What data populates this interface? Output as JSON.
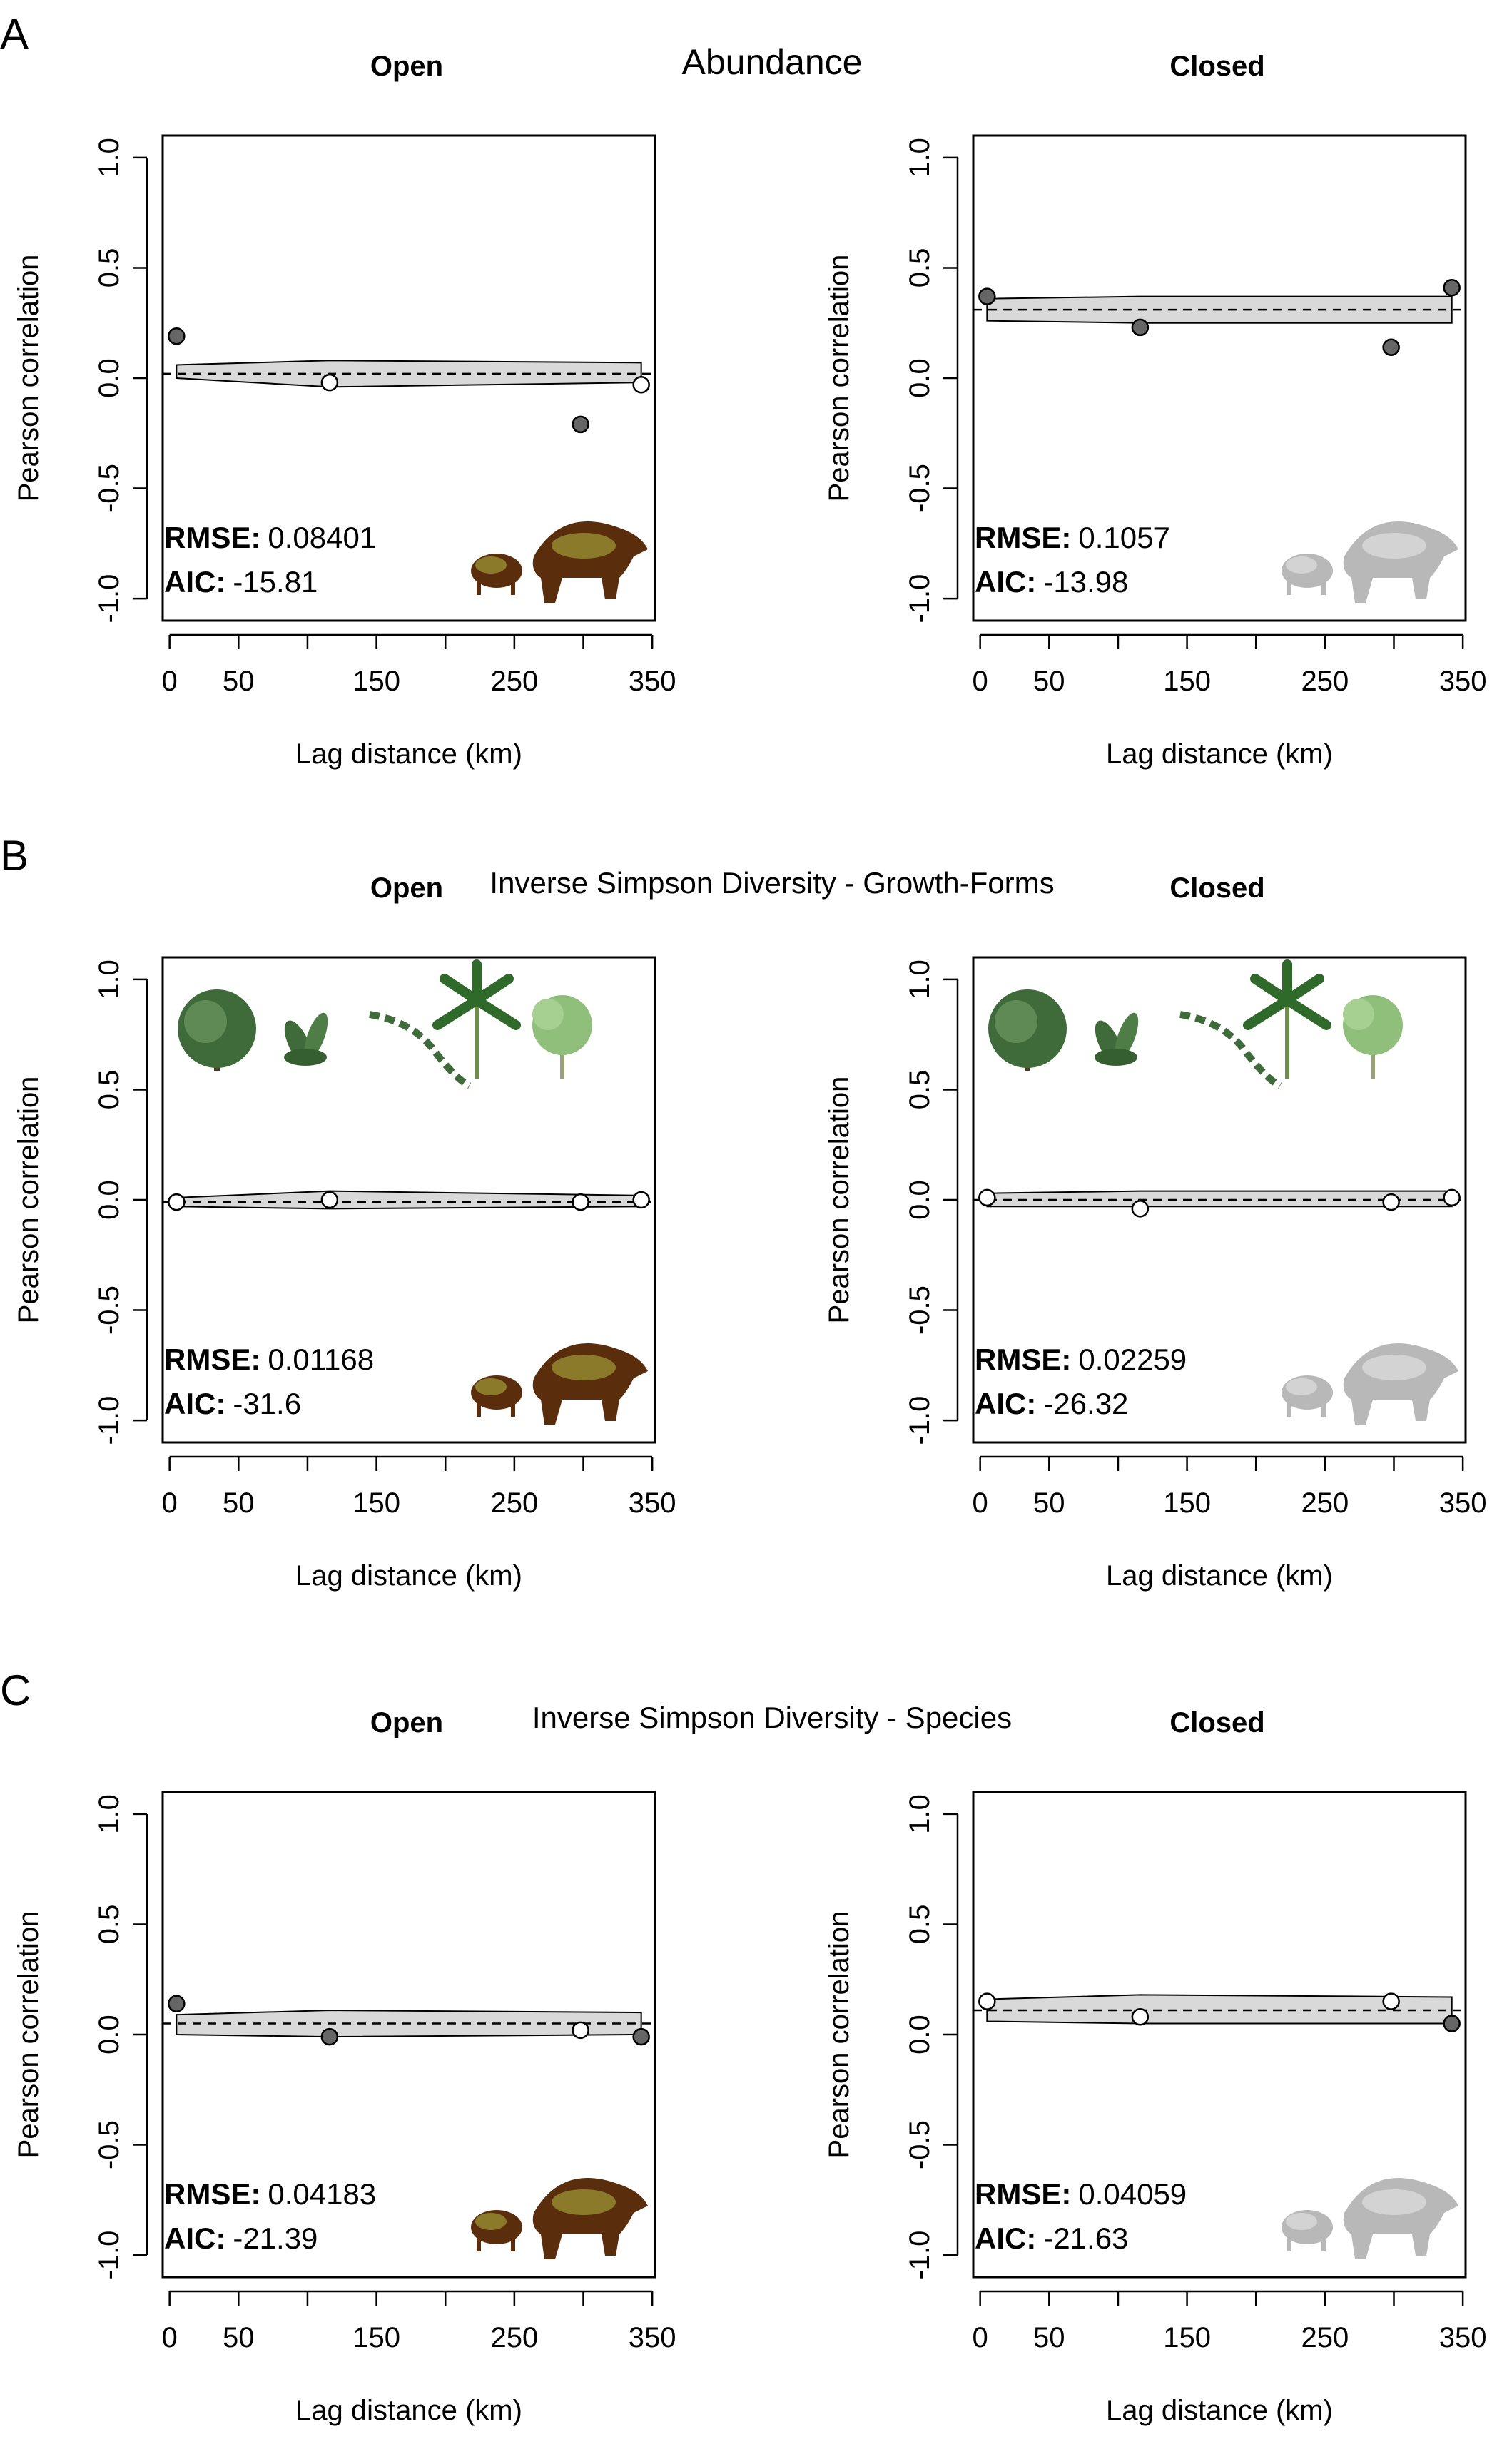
{
  "sections": [
    {
      "label": "A",
      "title": "Abundance",
      "title_style": "large",
      "panels": [
        {
          "name": "Open",
          "rmse_label": "RMSE:",
          "rmse": "0.08401",
          "aic_label": "AIC:",
          "aic": "-15.81",
          "mean_line": 0.02,
          "envelope_upper": [
            0.06,
            0.08,
            0.07
          ],
          "envelope_lower": [
            0.0,
            -0.04,
            -0.02
          ],
          "points": [
            {
              "x": 5,
              "y": 0.19,
              "fill": "dark"
            },
            {
              "x": 116,
              "y": -0.02,
              "fill": "white"
            },
            {
              "x": 298,
              "y": -0.21,
              "fill": "dark"
            },
            {
              "x": 342,
              "y": -0.03,
              "fill": "white"
            }
          ],
          "icon_style": "color",
          "plants": false
        },
        {
          "name": "Closed",
          "rmse_label": "RMSE:",
          "rmse": "0.1057",
          "aic_label": "AIC:",
          "aic": "-13.98",
          "mean_line": 0.31,
          "envelope_upper": [
            0.36,
            0.37,
            0.37
          ],
          "envelope_lower": [
            0.26,
            0.25,
            0.25
          ],
          "points": [
            {
              "x": 5,
              "y": 0.37,
              "fill": "dark"
            },
            {
              "x": 116,
              "y": 0.23,
              "fill": "dark"
            },
            {
              "x": 298,
              "y": 0.14,
              "fill": "dark"
            },
            {
              "x": 342,
              "y": 0.41,
              "fill": "dark"
            }
          ],
          "icon_style": "gray",
          "plants": false
        }
      ]
    },
    {
      "label": "B",
      "title": "Inverse Simpson Diversity - Growth-Forms",
      "title_style": "small",
      "panels": [
        {
          "name": "Open",
          "rmse_label": "RMSE:",
          "rmse": "0.01168",
          "aic_label": "AIC:",
          "aic": "-31.6",
          "mean_line": -0.01,
          "envelope_upper": [
            0.01,
            0.04,
            0.02
          ],
          "envelope_lower": [
            -0.03,
            -0.04,
            -0.03
          ],
          "points": [
            {
              "x": 5,
              "y": -0.01,
              "fill": "white"
            },
            {
              "x": 116,
              "y": 0.0,
              "fill": "white"
            },
            {
              "x": 298,
              "y": -0.01,
              "fill": "white"
            },
            {
              "x": 342,
              "y": 0.0,
              "fill": "white"
            }
          ],
          "icon_style": "color",
          "plants": true
        },
        {
          "name": "Closed",
          "rmse_label": "RMSE:",
          "rmse": "0.02259",
          "aic_label": "AIC:",
          "aic": "-26.32",
          "mean_line": 0.0,
          "envelope_upper": [
            0.03,
            0.04,
            0.04
          ],
          "envelope_lower": [
            -0.03,
            -0.03,
            -0.03
          ],
          "points": [
            {
              "x": 5,
              "y": 0.01,
              "fill": "white"
            },
            {
              "x": 116,
              "y": -0.04,
              "fill": "white"
            },
            {
              "x": 298,
              "y": -0.01,
              "fill": "white"
            },
            {
              "x": 342,
              "y": 0.01,
              "fill": "white"
            }
          ],
          "icon_style": "gray",
          "plants": true
        }
      ]
    },
    {
      "label": "C",
      "title": "Inverse Simpson Diversity - Species",
      "title_style": "small",
      "panels": [
        {
          "name": "Open",
          "rmse_label": "RMSE:",
          "rmse": "0.04183",
          "aic_label": "AIC:",
          "aic": "-21.39",
          "mean_line": 0.05,
          "envelope_upper": [
            0.09,
            0.11,
            0.1
          ],
          "envelope_lower": [
            0.0,
            -0.01,
            0.0
          ],
          "points": [
            {
              "x": 5,
              "y": 0.14,
              "fill": "dark"
            },
            {
              "x": 116,
              "y": -0.01,
              "fill": "dark"
            },
            {
              "x": 298,
              "y": 0.02,
              "fill": "white"
            },
            {
              "x": 342,
              "y": -0.01,
              "fill": "dark"
            }
          ],
          "icon_style": "color",
          "plants": false
        },
        {
          "name": "Closed",
          "rmse_label": "RMSE:",
          "rmse": "0.04059",
          "aic_label": "AIC:",
          "aic": "-21.63",
          "mean_line": 0.11,
          "envelope_upper": [
            0.16,
            0.18,
            0.17
          ],
          "envelope_lower": [
            0.06,
            0.05,
            0.05
          ],
          "points": [
            {
              "x": 5,
              "y": 0.15,
              "fill": "white"
            },
            {
              "x": 116,
              "y": 0.08,
              "fill": "white"
            },
            {
              "x": 298,
              "y": 0.15,
              "fill": "white"
            },
            {
              "x": 342,
              "y": 0.05,
              "fill": "dark"
            }
          ],
          "icon_style": "gray",
          "plants": false
        }
      ]
    }
  ],
  "axes": {
    "xlabel": "Lag distance (km)",
    "ylabel": "Pearson correlation",
    "xlim": [
      -5,
      352
    ],
    "ylim": [
      -1.1,
      1.1
    ],
    "x_ticks": [
      0,
      50,
      150,
      250,
      350
    ],
    "x_ticks_minor": [
      100,
      200,
      300
    ],
    "y_ticks": [
      -1.0,
      -0.5,
      0.0,
      0.5,
      1.0
    ],
    "y_tick_labels": [
      "-1.0",
      "-0.5",
      "0.0",
      "0.5",
      "1.0"
    ],
    "envelope_x": [
      5,
      116,
      342
    ],
    "grid": false
  },
  "colors": {
    "point_dark": "#666666",
    "point_white": "#ffffff",
    "envelope_fill": "#d9d9d9",
    "icon_open_body": "#5a2d0c",
    "icon_open_accent": "#8a7a2a",
    "icon_closed_body": "#b8b8b8",
    "icon_closed_accent": "#d3d3d3",
    "plant_dark": "#3f6b3a",
    "plant_light": "#8fbf7a"
  }
}
